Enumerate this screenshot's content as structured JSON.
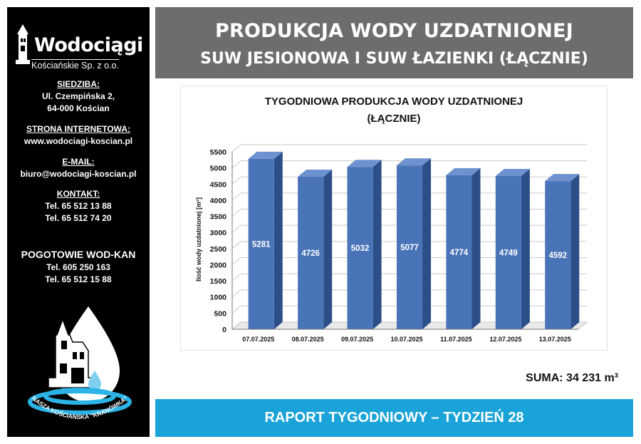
{
  "sidebar": {
    "logo_title": "Wodociągi",
    "logo_subtitle": "Kościańskie Sp. z o.o.",
    "siedziba_label": "SIEDZIBA:",
    "address_line1": "Ul. Czempińska 2,",
    "address_line2": "64-000 Kościan",
    "www_label": "STRONA INTERNETOWA:",
    "www": "www.wodociagi-koscian.pl",
    "email_label": "E-MAIL:",
    "email": "biuro@wodociagi-koscian.pl",
    "contact_label": "KONTAKT:",
    "phone1": "Tel. 65 512 13 88",
    "phone2": "Tel. 65 512 74 20",
    "emergency_title": "POGOTOWIE WOD-KAN",
    "emergency_phone1": "Tel. 605 250 163",
    "emergency_phone2": "Tel. 65 512 15 88",
    "emblem_text": "NASZA KOŚCIAŃSKA \"KRANÓWKA\""
  },
  "header": {
    "title": "PRODUKCJA WODY UZDATNIONEJ",
    "subtitle": "SUW JESIONOWA I SUW ŁAZIENKI (ŁĄCZNIE)"
  },
  "chart_data": {
    "type": "bar",
    "title_line1": "TYGODNIOWA PRODUKCJA WODY UZDATNIONEJ",
    "title_line2": "(ŁĄCZNIE)",
    "ylabel": "Ilość wody uzdatnionej [m³]",
    "xlabel": "",
    "categories": [
      "07.07.2025",
      "08.07.2025",
      "09.07.2025",
      "10.07.2025",
      "11.07.2025",
      "12.07.2025",
      "13.07.2025"
    ],
    "values": [
      5281,
      4726,
      5032,
      5077,
      4774,
      4749,
      4592
    ],
    "ylim": [
      0,
      5500
    ],
    "yticks": [
      0,
      500,
      1000,
      1500,
      2000,
      2500,
      3000,
      3500,
      4000,
      4500,
      5000,
      5500
    ],
    "grid": true,
    "bar_color": "#4a74b8"
  },
  "suma": "SUMA: 34 231 m³",
  "footer": "RAPORT TYGODNIOWY – TYDZIEŃ 28"
}
